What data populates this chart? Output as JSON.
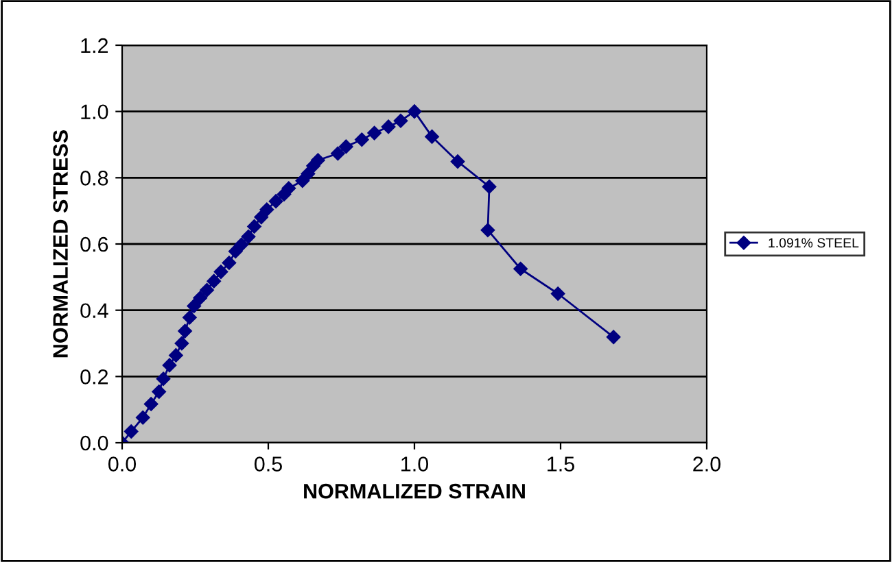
{
  "chart_data": {
    "type": "line",
    "xlabel": "NORMALIZED STRAIN",
    "ylabel": "NORMALIZED STRESS",
    "xlim": [
      0,
      2
    ],
    "xticks": [
      {
        "value": 0,
        "label": "0.0"
      },
      {
        "value": 0.5,
        "label": "0.5"
      },
      {
        "value": 1,
        "label": "1.0"
      },
      {
        "value": 1.5,
        "label": "1.5"
      },
      {
        "value": 2,
        "label": "2.0"
      }
    ],
    "ylim": [
      0,
      1.2
    ],
    "yticks": [
      {
        "value": 0,
        "label": "0.0"
      },
      {
        "value": 0.2,
        "label": "0.2"
      },
      {
        "value": 0.4,
        "label": "0.4"
      },
      {
        "value": 0.6,
        "label": "0.6"
      },
      {
        "value": 0.8,
        "label": "0.8"
      },
      {
        "value": 1.0,
        "label": "1.0"
      },
      {
        "value": 1.2,
        "label": "1.2"
      }
    ],
    "grid": "y",
    "legend": "right",
    "marker": "diamond",
    "line_style": "solid",
    "series": [
      {
        "name": "1.091% STEEL",
        "color": "#000080",
        "x": [
          0,
          0.031,
          0.071,
          0.099,
          0.126,
          0.141,
          0.162,
          0.184,
          0.204,
          0.215,
          0.231,
          0.246,
          0.267,
          0.29,
          0.314,
          0.338,
          0.366,
          0.388,
          0.408,
          0.432,
          0.452,
          0.476,
          0.495,
          0.526,
          0.554,
          0.57,
          0.617,
          0.636,
          0.654,
          0.67,
          0.738,
          0.766,
          0.82,
          0.863,
          0.911,
          0.953,
          1.0,
          1.06,
          1.148,
          1.256,
          1.251,
          1.363,
          1.491,
          1.681
        ],
        "values": [
          0,
          0.034,
          0.076,
          0.117,
          0.154,
          0.193,
          0.234,
          0.264,
          0.3,
          0.337,
          0.378,
          0.413,
          0.437,
          0.461,
          0.488,
          0.516,
          0.543,
          0.578,
          0.598,
          0.622,
          0.653,
          0.681,
          0.704,
          0.729,
          0.75,
          0.768,
          0.791,
          0.812,
          0.836,
          0.853,
          0.873,
          0.894,
          0.915,
          0.935,
          0.954,
          0.972,
          1.0,
          0.924,
          0.849,
          0.773,
          0.642,
          0.525,
          0.45,
          0.319
        ]
      }
    ]
  }
}
